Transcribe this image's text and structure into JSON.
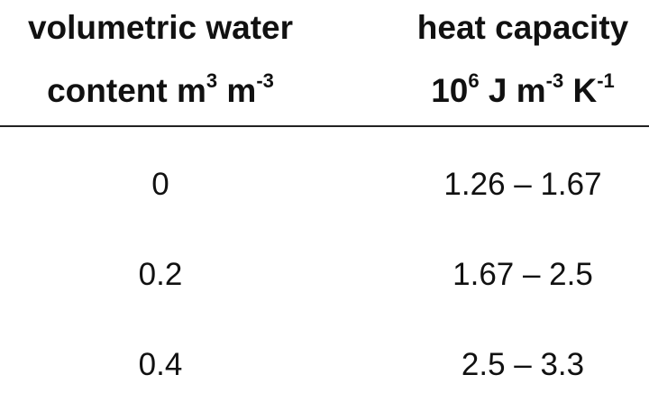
{
  "table": {
    "header": [
      {
        "lines": [
          [
            {
              "text": "volumetric water",
              "sup": false
            }
          ],
          [
            {
              "text": "content m",
              "sup": false
            },
            {
              "text": "3",
              "sup": true
            },
            {
              "text": " m",
              "sup": false
            },
            {
              "text": "-3",
              "sup": true
            }
          ]
        ]
      },
      {
        "lines": [
          [
            {
              "text": "heat capacity",
              "sup": false
            }
          ],
          [
            {
              "text": "10",
              "sup": false
            },
            {
              "text": "6",
              "sup": true
            },
            {
              "text": " J m",
              "sup": false
            },
            {
              "text": "-3",
              "sup": true
            },
            {
              "text": " K",
              "sup": false
            },
            {
              "text": "-1",
              "sup": true
            }
          ]
        ]
      }
    ],
    "rows": [
      [
        "0",
        "1.26 – 1.67"
      ],
      [
        "0.2",
        "1.67 – 2.5"
      ],
      [
        "0.4",
        "2.5 – 3.3"
      ]
    ]
  }
}
